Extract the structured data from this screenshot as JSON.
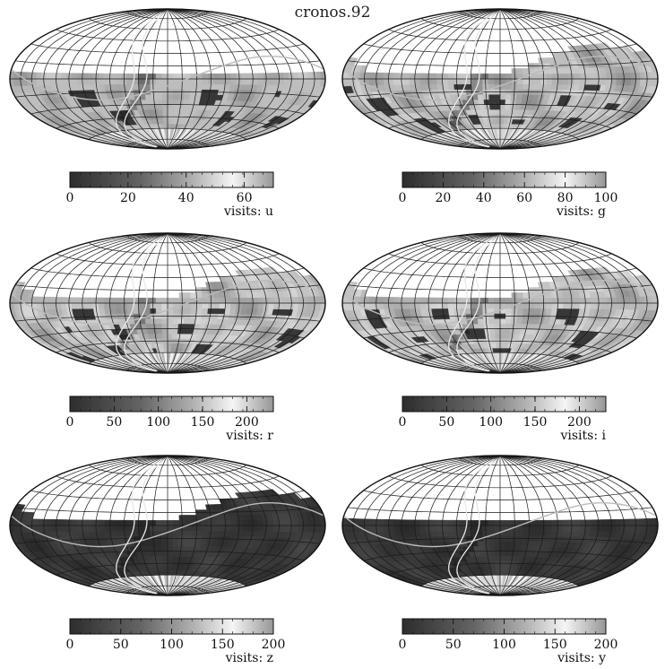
{
  "title": "cronos.92",
  "colors": {
    "background": "#ffffff",
    "grid": "#ffffff",
    "grid_outline": "#1a1a1a",
    "low_coverage": "#3a3a3a",
    "high_coverage": "#f2f2f2"
  },
  "chart_data": [
    {
      "type": "heatmap",
      "projection": "Hammer-Aitoff (all-sky)",
      "filter": "u",
      "colorbar_label": "visits: u",
      "colorbar_range": [
        0,
        70
      ],
      "colorbar_ticks": [
        0,
        20,
        40,
        60
      ],
      "colormap": "grayscale",
      "coverage_dec_top": 5,
      "coverage_dec_bottom": -90,
      "north_extension": "none",
      "mean_visits_estimate": 35
    },
    {
      "type": "heatmap",
      "projection": "Hammer-Aitoff (all-sky)",
      "filter": "g",
      "colorbar_label": "visits: g",
      "colorbar_range": [
        0,
        100
      ],
      "colorbar_ticks": [
        0,
        20,
        40,
        60,
        80,
        100
      ],
      "colormap": "grayscale",
      "coverage_dec_top": 5,
      "coverage_dec_bottom": -90,
      "north_extension": "ecliptic band",
      "mean_visits_estimate": 50
    },
    {
      "type": "heatmap",
      "projection": "Hammer-Aitoff (all-sky)",
      "filter": "r",
      "colorbar_label": "visits: r",
      "colorbar_range": [
        0,
        230
      ],
      "colorbar_ticks": [
        0,
        50,
        100,
        150,
        200
      ],
      "colormap": "grayscale",
      "coverage_dec_top": 5,
      "coverage_dec_bottom": -90,
      "north_extension": "ecliptic band",
      "mean_visits_estimate": 120
    },
    {
      "type": "heatmap",
      "projection": "Hammer-Aitoff (all-sky)",
      "filter": "i",
      "colorbar_label": "visits: i",
      "colorbar_range": [
        0,
        230
      ],
      "colorbar_ticks": [
        0,
        50,
        100,
        150,
        200
      ],
      "colormap": "grayscale",
      "coverage_dec_top": 5,
      "coverage_dec_bottom": -90,
      "north_extension": "ecliptic band",
      "mean_visits_estimate": 120
    },
    {
      "type": "heatmap",
      "projection": "Hammer-Aitoff (all-sky)",
      "filter": "z",
      "colorbar_label": "visits: z",
      "colorbar_range": [
        0,
        200
      ],
      "colorbar_ticks": [
        0,
        50,
        100,
        150,
        200
      ],
      "colormap": "grayscale",
      "coverage_dec_top": 5,
      "coverage_dec_bottom": -90,
      "north_extension": "ecliptic band",
      "mean_visits_estimate": 20
    },
    {
      "type": "heatmap",
      "projection": "Hammer-Aitoff (all-sky)",
      "filter": "y",
      "colorbar_label": "visits: y",
      "colorbar_range": [
        0,
        200
      ],
      "colorbar_ticks": [
        0,
        50,
        100,
        150,
        200
      ],
      "colormap": "grayscale",
      "coverage_dec_top": 5,
      "coverage_dec_bottom": -90,
      "north_extension": "none",
      "mean_visits_estimate": 20
    }
  ]
}
